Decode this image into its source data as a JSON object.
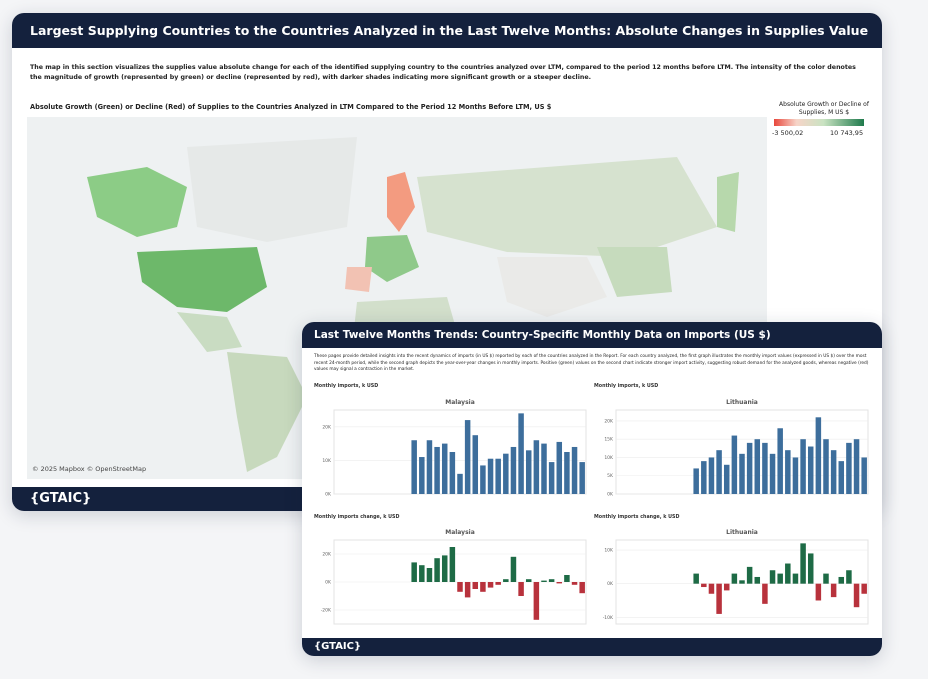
{
  "back": {
    "title": "Largest Supplying Countries to the Countries Analyzed in the Last Twelve Months: Absolute Changes in Supplies Value (US $)",
    "description": "The map in this section visualizes the supplies value absolute change for each of the identified supplying country to the countries analyzed over LTM, compared to the period 12 months before LTM. The intensity of the color denotes the magnitude of growth (represented by green) or decline (represented by red), with darker shades indicating more significant growth or a steeper decline.",
    "map_title": "Absolute Growth (Green) or Decline (Red) of Supplies to the Countries Analyzed in LTM Compared to the Period 12 Months Before LTM, US $",
    "legend": {
      "title": "Absolute Growth or Decline of Supplies, M US $",
      "min_label": "-3 500,02",
      "max_label": "10 743,95"
    },
    "attribution": "© 2025 Mapbox © OpenStreetMap",
    "logo": "{GTAIC}"
  },
  "front": {
    "title": "Last Twelve Months Trends: Country-Specific Monthly Data on Imports (US $)",
    "description": "These pages provide detailed insights into the recent dynamics of imports (in US $) reported by each of the countries analyzed in the Report. For each country analyzed, the first graph illustrates the monthly import values (expressed in US $) over the most recent 24-month period, while the second graph depicts the year-over-year changes in monthly imports. Positive (green) values on the second chart indicate stronger import activity, suggesting robust demand for the analyzed goods, whereas negative (red) values may signal a contraction in the market.",
    "section_monthly": "Monthly imports, k USD",
    "section_change": "Monthly imports change, k USD",
    "logo": "{GTAIC}",
    "charts": [
      {
        "type": "bar",
        "title": "Malaysia",
        "color": "#3d6e9c",
        "values": [
          null,
          null,
          null,
          null,
          null,
          null,
          null,
          null,
          null,
          null,
          16,
          11,
          16,
          14,
          15,
          12.5,
          6,
          22,
          17.5,
          8.5,
          10.5,
          10.5,
          12,
          14,
          24,
          13,
          16,
          15,
          9.5,
          15.5,
          12.5,
          14,
          9.5
        ],
        "ylim": [
          0,
          25
        ],
        "yticks": [
          {
            "value": 0,
            "label": "0K"
          },
          {
            "value": 10,
            "label": "10K"
          },
          {
            "value": 20,
            "label": "20K"
          }
        ]
      },
      {
        "type": "bar",
        "title": "Lithuania",
        "color": "#3d6e9c",
        "values": [
          null,
          null,
          null,
          null,
          null,
          null,
          null,
          null,
          null,
          null,
          7,
          9,
          10,
          12,
          8,
          16,
          11,
          14,
          15,
          14,
          11,
          18,
          12,
          10,
          15,
          13,
          21,
          15,
          12,
          9,
          14,
          15,
          10
        ],
        "ylim": [
          0,
          23
        ],
        "yticks": [
          {
            "value": 0,
            "label": "0K"
          },
          {
            "value": 5,
            "label": "5K"
          },
          {
            "value": 10,
            "label": "10K"
          },
          {
            "value": 15,
            "label": "15K"
          },
          {
            "value": 20,
            "label": "20K"
          }
        ]
      },
      {
        "type": "diverging",
        "title": "Malaysia",
        "pos_color": "#1e6b46",
        "neg_color": "#b8323c",
        "values": [
          null,
          null,
          null,
          null,
          null,
          null,
          null,
          null,
          null,
          null,
          14,
          12,
          10,
          17,
          19,
          25,
          -7,
          -11,
          -5,
          -7,
          -4,
          -2,
          2,
          18,
          -10,
          2,
          -27,
          1,
          2,
          -1,
          5,
          -2,
          -8
        ],
        "ylim": [
          -30,
          30
        ],
        "yticks": [
          {
            "value": -20,
            "label": "-20K"
          },
          {
            "value": 0,
            "label": "0K"
          },
          {
            "value": 20,
            "label": "20K"
          }
        ]
      },
      {
        "type": "diverging",
        "title": "Lithuania",
        "pos_color": "#1e6b46",
        "neg_color": "#b8323c",
        "values": [
          null,
          null,
          null,
          null,
          null,
          null,
          null,
          null,
          null,
          null,
          3,
          -1,
          -3,
          -9,
          -2,
          3,
          1,
          5,
          2,
          -6,
          4,
          3,
          6,
          3,
          12,
          9,
          -5,
          3,
          -4,
          2,
          4,
          -7,
          -3
        ],
        "ylim": [
          -12,
          13
        ],
        "yticks": [
          {
            "value": -10,
            "label": "-10K"
          },
          {
            "value": 0,
            "label": "0K"
          },
          {
            "value": 10,
            "label": "10K"
          }
        ]
      }
    ]
  }
}
